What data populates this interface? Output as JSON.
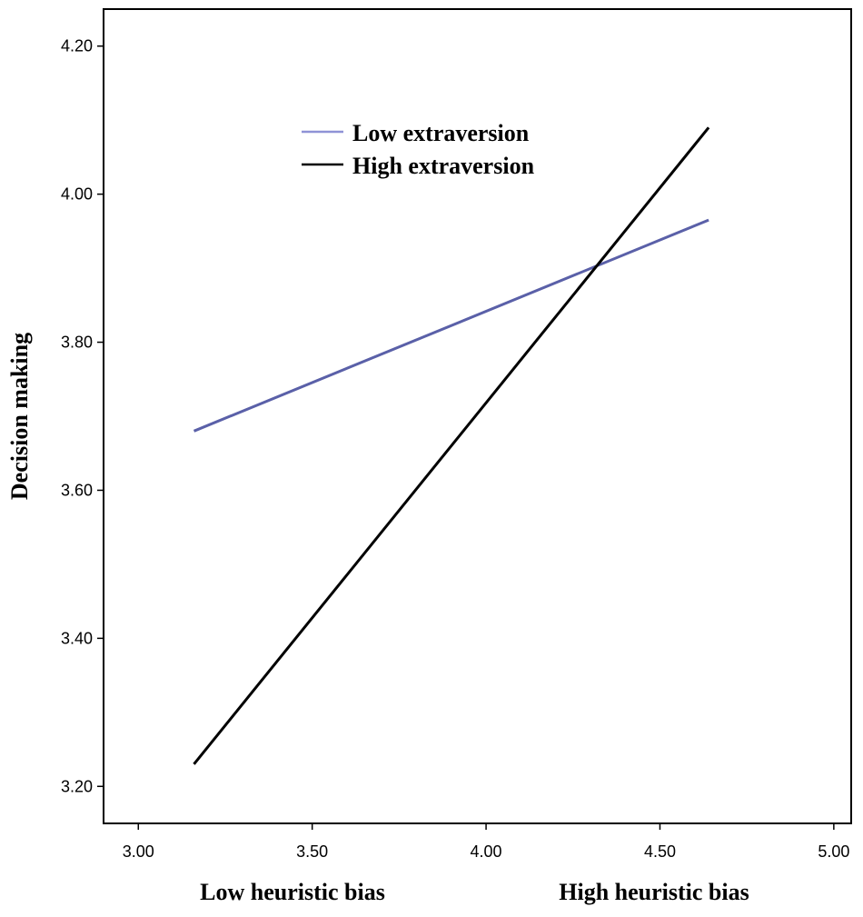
{
  "chart_data": {
    "type": "line",
    "title": "",
    "xlabel_left": "Low heuristic bias",
    "xlabel_right": "High heuristic bias",
    "ylabel": "Decision making",
    "xlim": [
      2.9,
      5.05
    ],
    "ylim": [
      3.15,
      4.25
    ],
    "x_ticks": [
      3.0,
      3.5,
      4.0,
      4.5,
      5.0
    ],
    "x_tick_labels": [
      "3.00",
      "3.50",
      "4.00",
      "4.50",
      "5.00"
    ],
    "y_ticks": [
      3.2,
      3.4,
      3.6,
      3.8,
      4.0,
      4.2
    ],
    "y_tick_labels": [
      "3.20",
      "3.40",
      "3.60",
      "3.80",
      "4.00",
      "4.20"
    ],
    "grid": false,
    "legend_position": "top-center",
    "series": [
      {
        "name": "Low extraversion",
        "color": "#5a60a8",
        "legend_color": "#8f93d6",
        "points": [
          {
            "x": 3.16,
            "y": 3.68
          },
          {
            "x": 4.64,
            "y": 3.965
          }
        ]
      },
      {
        "name": "High extraversion",
        "color": "#000000",
        "legend_color": "#000000",
        "points": [
          {
            "x": 3.16,
            "y": 3.23
          },
          {
            "x": 4.64,
            "y": 4.09
          }
        ]
      }
    ]
  }
}
